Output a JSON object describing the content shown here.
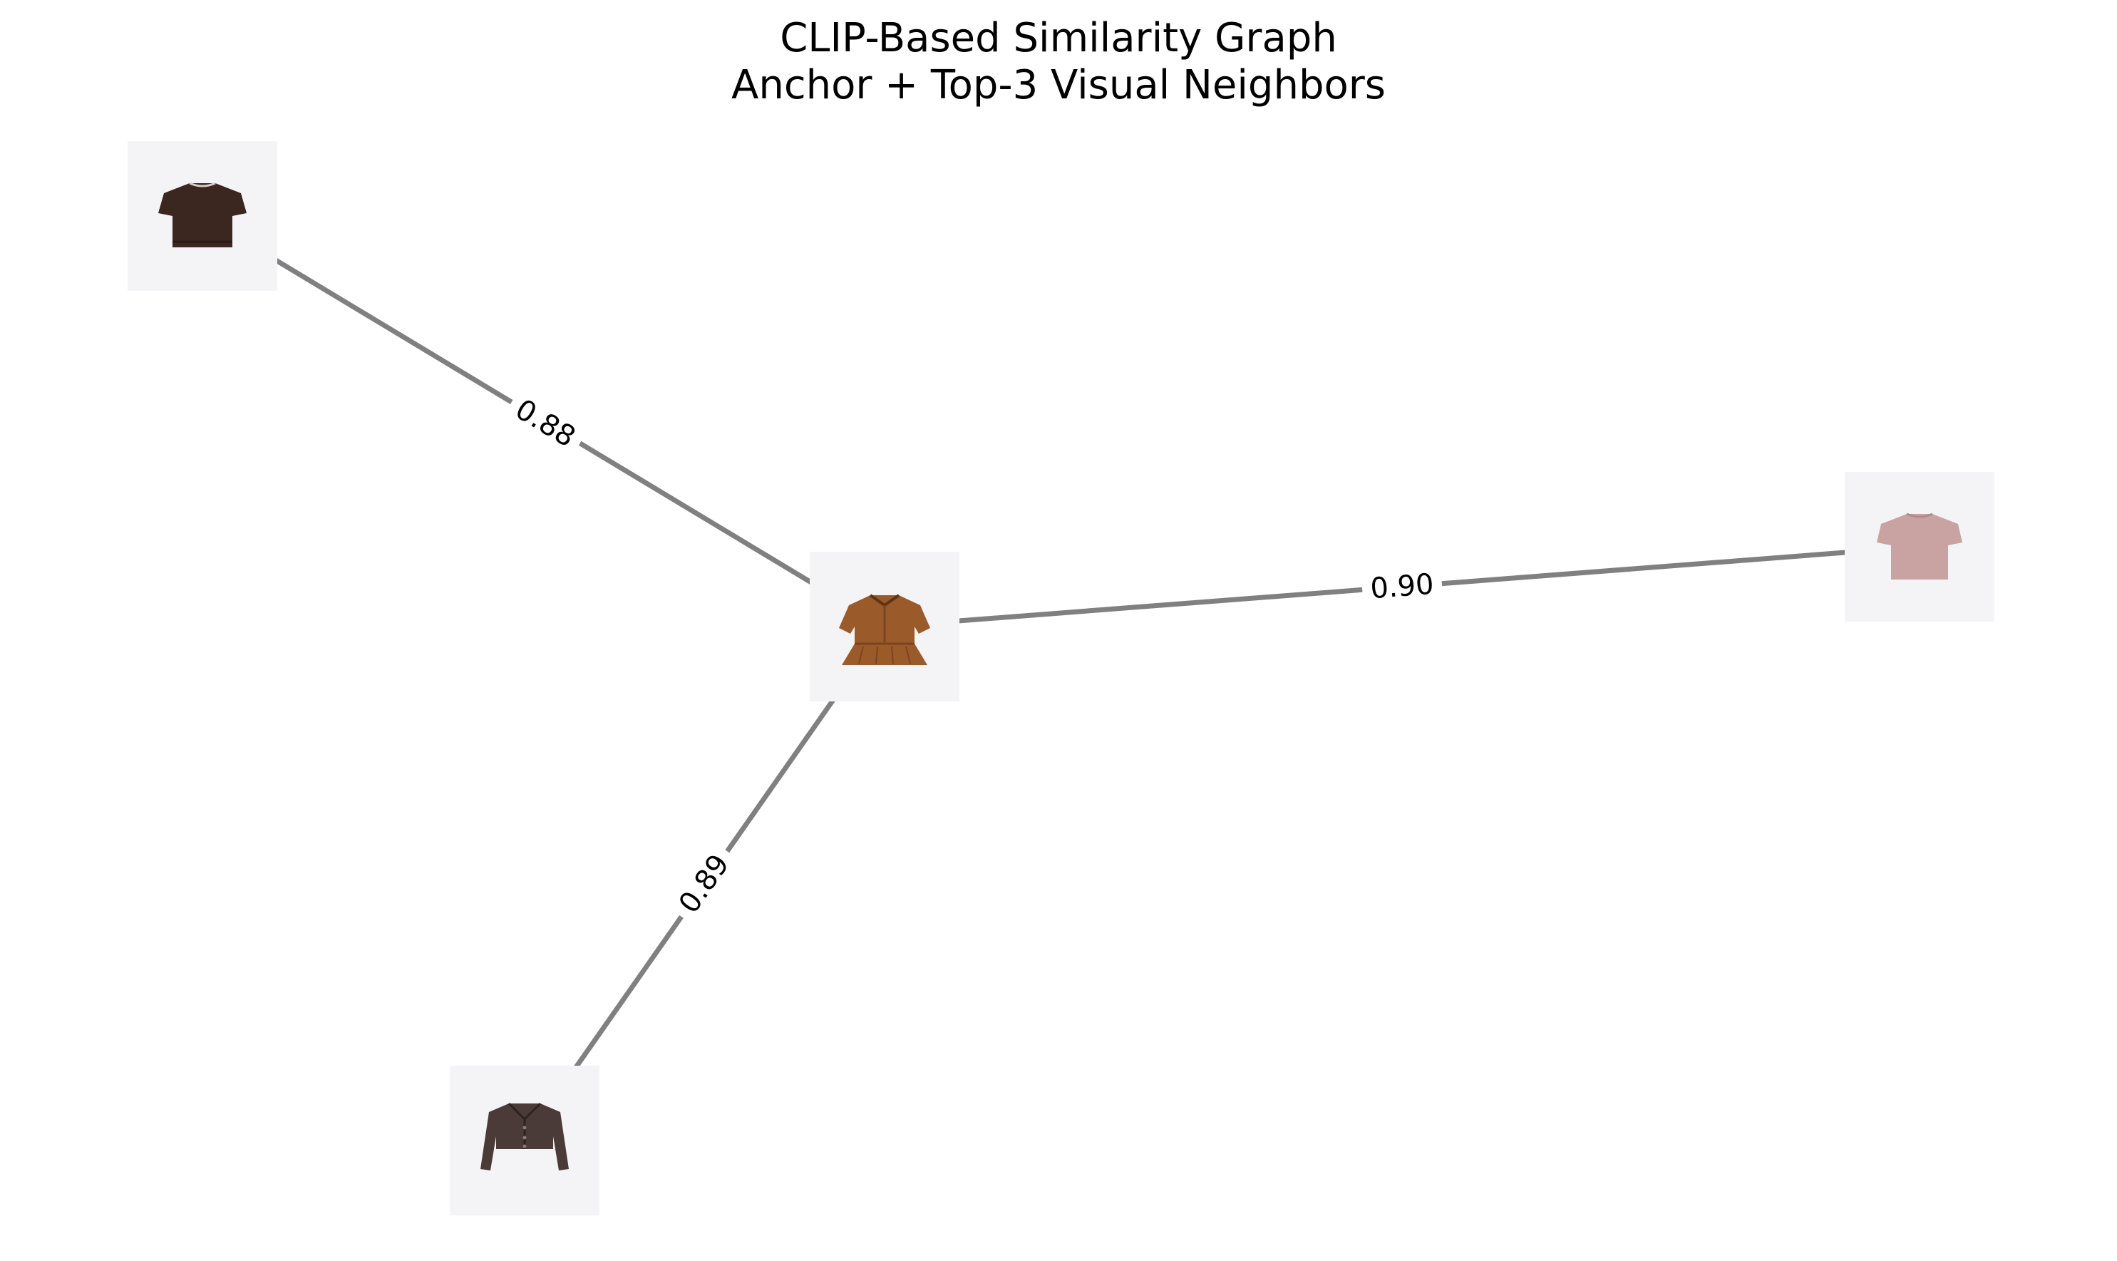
{
  "title": {
    "line1": "CLIP-Based Similarity Graph",
    "line2": "Anchor + Top-3 Visual Neighbors"
  },
  "colors": {
    "edge": "#808080",
    "tile_background": "#f4f4f6"
  },
  "nodes": [
    {
      "id": "anchor",
      "garment": "brown-peplum-polo-top-icon",
      "color": "#9a5a2a"
    },
    {
      "id": "neighbor-1",
      "garment": "dark-brown-knit-tee-icon",
      "color": "#3b2620"
    },
    {
      "id": "neighbor-2",
      "garment": "pink-cap-sleeve-tee-icon",
      "color": "#c9a3a1"
    },
    {
      "id": "neighbor-3",
      "garment": "dark-cropped-cardigan-icon",
      "color": "#4a3b38"
    }
  ],
  "edges": [
    {
      "id": "edge-neighbor-1",
      "source": "anchor",
      "target": "neighbor-1",
      "similarity": "0.88"
    },
    {
      "id": "edge-neighbor-2",
      "source": "anchor",
      "target": "neighbor-2",
      "similarity": "0.90"
    },
    {
      "id": "edge-neighbor-3",
      "source": "anchor",
      "target": "neighbor-3",
      "similarity": "0.89"
    }
  ]
}
